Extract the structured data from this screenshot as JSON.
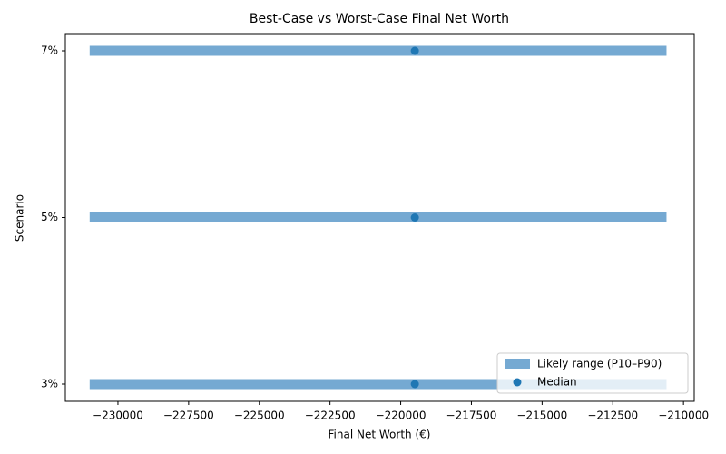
{
  "chart_data": {
    "type": "range",
    "title": "Best-Case vs Worst-Case Final Net Worth",
    "x_label": "Final Net Worth (€)",
    "y_label": "Scenario",
    "categories": [
      "3%",
      "5%",
      "7%"
    ],
    "series": [
      {
        "name": "Likely range (P10–P90)",
        "color": "#75a9d2",
        "low": [
          -231000,
          -231000,
          -231000
        ],
        "high": [
          -210600,
          -210600,
          -210600
        ]
      },
      {
        "name": "Median",
        "color": "#1f77b4",
        "values": [
          -219500,
          -219500,
          -219500
        ]
      }
    ],
    "xlim": [
      -231860,
      -209620
    ],
    "xticks": [
      {
        "value": -230000,
        "label": "−230000"
      },
      {
        "value": -227500,
        "label": "−227500"
      },
      {
        "value": -225000,
        "label": "−225000"
      },
      {
        "value": -222500,
        "label": "−222500"
      },
      {
        "value": -220000,
        "label": "−220000"
      },
      {
        "value": -217500,
        "label": "−217500"
      },
      {
        "value": -215000,
        "label": "−215000"
      },
      {
        "value": -212500,
        "label": "−212500"
      },
      {
        "value": -210000,
        "label": "−210000"
      }
    ],
    "legend": "lower right"
  }
}
